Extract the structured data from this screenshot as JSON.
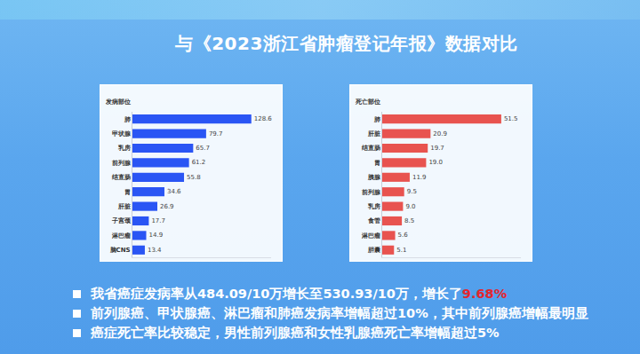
{
  "title": "与《2023浙江省肿瘤登记年报》数据对比",
  "chart_data": [
    {
      "type": "bar",
      "title": "发病部位",
      "orientation": "horizontal",
      "categories": [
        "肺",
        "甲状腺",
        "乳房",
        "前列腺",
        "结直肠",
        "胃",
        "肝脏",
        "子宫颈",
        "淋巴瘤",
        "脑CNS"
      ],
      "values": [
        128.6,
        79.7,
        65.7,
        61.2,
        55.8,
        34.6,
        26.9,
        17.7,
        14.9,
        13.4
      ],
      "value_labels": [
        "128.6",
        "79.7",
        "65.7",
        "61.2",
        "55.8",
        "34.6",
        "26.9",
        "17.7",
        "14.9",
        "13.4"
      ],
      "color": "#2a55f4",
      "xlim": [
        0,
        150
      ],
      "xticks": [],
      "grid": false,
      "data_labels": true,
      "tick_labels": "y"
    },
    {
      "type": "bar",
      "title": "死亡部位",
      "orientation": "horizontal",
      "categories": [
        "肺",
        "肝脏",
        "结直肠",
        "胃",
        "胰腺",
        "前列腺",
        "乳房",
        "食管",
        "淋巴瘤",
        "胆囊"
      ],
      "values": [
        51.5,
        20.9,
        19.7,
        19.0,
        11.9,
        9.5,
        9.0,
        8.5,
        5.6,
        5.1
      ],
      "value_labels": [
        "51.5",
        "20.9",
        "19.7",
        "19.0",
        "11.9",
        "9.5",
        "9.0",
        "8.5",
        "5.6",
        "5.1"
      ],
      "color": "#e8534f",
      "xlim": [
        0,
        60
      ],
      "xticks": [],
      "grid": false,
      "data_labels": true,
      "tick_labels": "y"
    }
  ],
  "bullets": [
    [
      "我省癌症发病率从484.09/10万增长至530.93/10万，增长了",
      "9.68%"
    ],
    [
      "前列腺癌、甲状腺癌、淋巴瘤和肺癌发病率增幅超过10%，其中前列腺癌增幅最明显"
    ],
    [
      "癌症死亡率比较稳定，男性前列腺癌和女性乳腺癌死亡率增幅超过5%"
    ]
  ]
}
